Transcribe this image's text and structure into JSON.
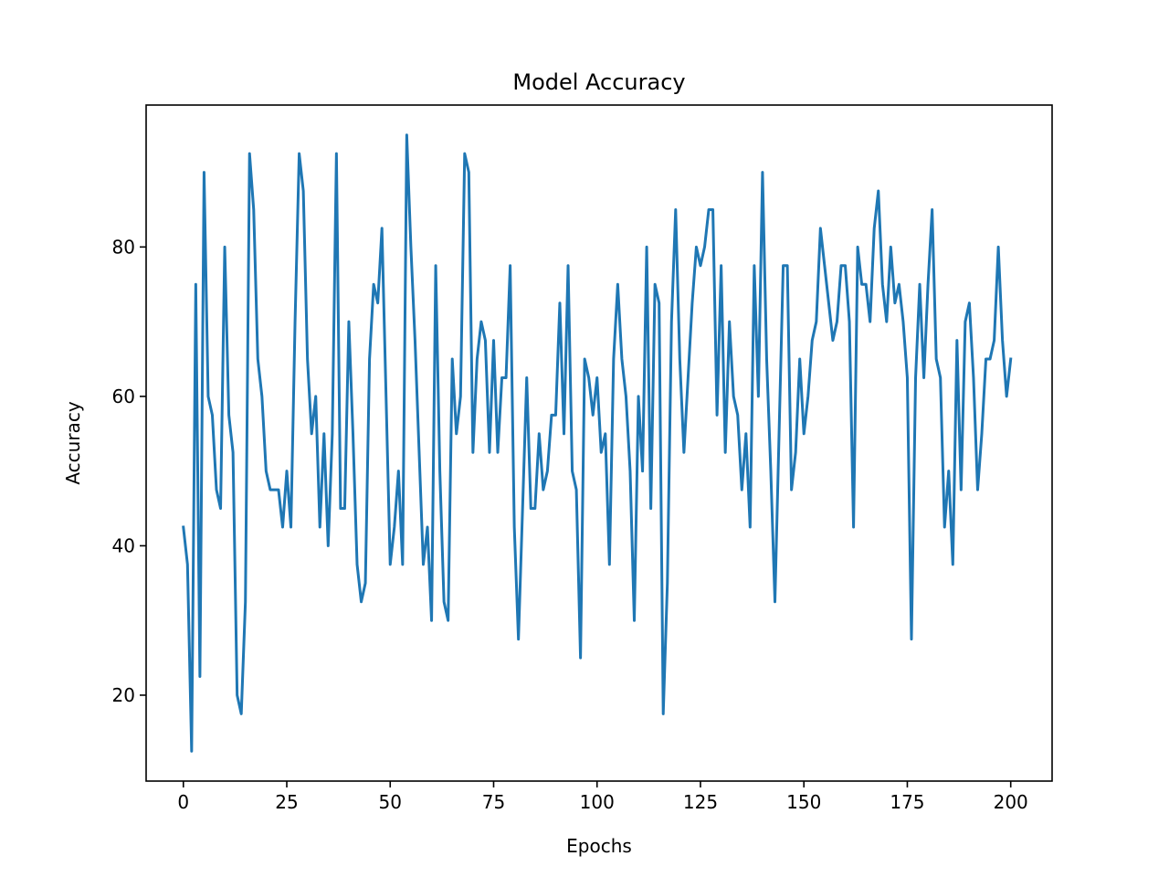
{
  "chart_data": {
    "type": "line",
    "title": "Model Accuracy",
    "xlabel": "Epochs",
    "ylabel": "Accuracy",
    "xlim": [
      -9,
      210
    ],
    "ylim": [
      8.5,
      99
    ],
    "xticks": [
      0,
      25,
      50,
      75,
      100,
      125,
      150,
      175,
      200
    ],
    "yticks": [
      20,
      40,
      60,
      80
    ],
    "grid": false,
    "series": [
      {
        "color": "#1f77b4",
        "x_start": 0,
        "x_step": 1,
        "values": [
          42.5,
          37.5,
          12.5,
          75,
          22.5,
          90,
          60,
          57.5,
          47.5,
          45,
          80,
          57.5,
          52.5,
          20,
          17.5,
          32.5,
          92.5,
          85,
          65,
          60,
          50,
          47.5,
          47.5,
          47.5,
          42.5,
          50,
          42.5,
          70,
          92.5,
          87.5,
          65,
          55,
          60,
          42.5,
          55,
          40,
          55,
          92.5,
          45,
          45,
          70,
          55,
          37.5,
          32.5,
          35,
          65,
          75,
          72.5,
          82.5,
          60,
          37.5,
          42.5,
          50,
          37.5,
          95,
          80,
          67.5,
          52.5,
          37.5,
          42.5,
          30,
          77.5,
          50,
          32.5,
          30,
          65,
          55,
          60,
          92.5,
          90,
          52.5,
          65,
          70,
          67.5,
          52.5,
          67.5,
          52.5,
          62.5,
          62.5,
          77.5,
          42.5,
          27.5,
          45,
          62.5,
          45,
          45,
          55,
          47.5,
          50,
          57.5,
          57.5,
          72.5,
          55,
          77.5,
          50,
          47.5,
          25,
          65,
          62.5,
          57.5,
          62.5,
          52.5,
          55,
          37.5,
          65,
          75,
          65,
          60,
          50,
          30,
          60,
          50,
          80,
          45,
          75,
          72.5,
          17.5,
          35,
          70,
          85,
          65,
          52.5,
          62.5,
          72.5,
          80,
          77.5,
          80,
          85,
          85,
          57.5,
          77.5,
          52.5,
          70,
          60,
          57.5,
          47.5,
          55,
          42.5,
          77.5,
          60,
          90,
          65,
          50,
          32.5,
          55,
          77.5,
          77.5,
          47.5,
          52.5,
          65,
          55,
          60,
          67.5,
          70,
          82.5,
          77.5,
          72.5,
          67.5,
          70,
          77.5,
          77.5,
          70,
          42.5,
          80,
          75,
          75,
          70,
          82.5,
          87.5,
          75,
          70,
          80,
          72.5,
          75,
          70,
          62.5,
          27.5,
          62.5,
          75,
          62.5,
          75,
          85,
          65,
          62.5,
          42.5,
          50,
          37.5,
          67.5,
          47.5,
          70,
          72.5,
          62.5,
          47.5,
          55,
          65,
          65,
          67.5,
          80,
          67.5,
          60,
          65
        ]
      }
    ]
  }
}
